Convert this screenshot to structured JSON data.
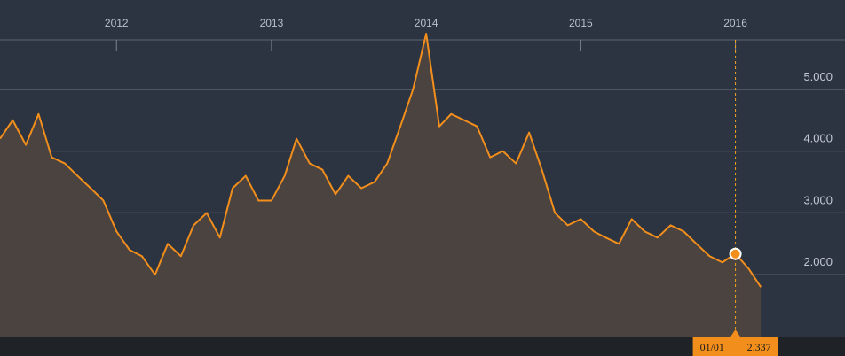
{
  "colors": {
    "background": "#2b3440",
    "bottom_strip": "#1f2226",
    "line": "#f28e1c",
    "area_fill": "#4b433f",
    "grid": "#d7d7d7",
    "cursor": "#f2a21c",
    "tooltip_bg": "#f28e1c"
  },
  "chart_data": {
    "type": "area",
    "title": "",
    "xlabel": "",
    "ylabel": "",
    "x_tick_labels": [
      "2012",
      "2013",
      "2014",
      "2015",
      "2016"
    ],
    "y_ticks": [
      2.0,
      3.0,
      4.0,
      5.0
    ],
    "y_tick_labels": [
      "2.000",
      "3.000",
      "4.000",
      "5.000"
    ],
    "xlim": [
      "2011-04",
      "2016-04"
    ],
    "ylim": [
      1.0,
      5.8
    ],
    "grid": true,
    "series": [
      {
        "values_x": [
          "2011-04-01",
          "2011-05-01",
          "2011-06-01",
          "2011-07-01",
          "2011-08-01",
          "2011-09-01",
          "2011-10-01",
          "2011-11-01",
          "2011-12-01",
          "2012-01-01",
          "2012-02-01",
          "2012-03-01",
          "2012-04-01",
          "2012-05-01",
          "2012-06-01",
          "2012-07-01",
          "2012-08-01",
          "2012-09-01",
          "2012-10-01",
          "2012-11-01",
          "2012-12-01",
          "2013-01-01",
          "2013-02-01",
          "2013-03-01",
          "2013-04-01",
          "2013-05-01",
          "2013-06-01",
          "2013-07-01",
          "2013-08-01",
          "2013-09-01",
          "2013-10-01",
          "2013-11-01",
          "2013-12-01",
          "2014-01-01",
          "2014-02-01",
          "2014-03-01",
          "2014-04-01",
          "2014-05-01",
          "2014-06-01",
          "2014-07-01",
          "2014-08-01",
          "2014-09-01",
          "2014-10-01",
          "2014-11-01",
          "2014-12-01",
          "2015-01-01",
          "2015-02-01",
          "2015-03-01",
          "2015-04-01",
          "2015-05-01",
          "2015-06-01",
          "2015-07-01",
          "2015-08-01",
          "2015-09-01",
          "2015-10-01",
          "2015-11-01",
          "2015-12-01",
          "2016-01-01",
          "2016-02-01",
          "2016-03-01"
        ],
        "values": [
          4.2,
          4.5,
          4.1,
          4.6,
          3.9,
          3.8,
          3.6,
          3.4,
          3.2,
          2.7,
          2.4,
          2.3,
          2.0,
          2.5,
          2.3,
          2.8,
          3.0,
          2.6,
          3.4,
          3.6,
          3.2,
          3.2,
          3.6,
          4.2,
          3.8,
          3.7,
          3.3,
          3.6,
          3.4,
          3.5,
          3.8,
          4.4,
          5.0,
          5.9,
          4.4,
          4.6,
          4.5,
          4.4,
          3.9,
          4.0,
          3.8,
          4.3,
          3.7,
          3.0,
          2.8,
          2.9,
          2.7,
          2.6,
          2.5,
          2.9,
          2.7,
          2.6,
          2.8,
          2.7,
          2.5,
          2.3,
          2.2,
          2.34,
          2.1,
          1.8
        ]
      }
    ],
    "cursor": {
      "date_label": "01/01",
      "value_label": "2.337",
      "x": "2016-01-01",
      "y": 2.337
    }
  }
}
